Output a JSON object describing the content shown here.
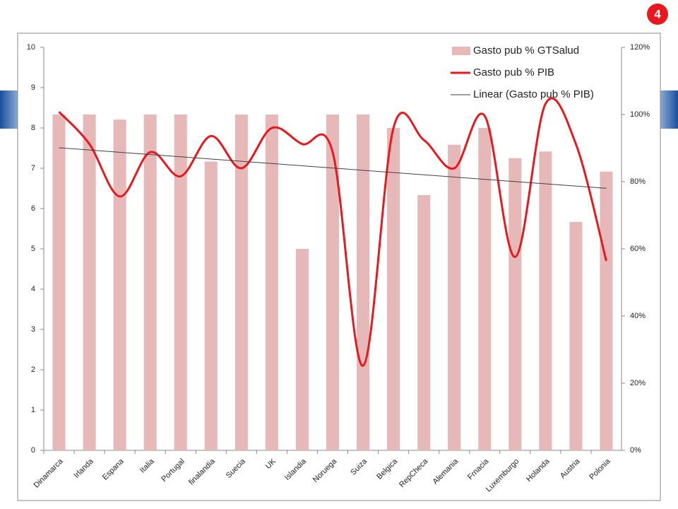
{
  "slide_number": "4",
  "chart_data": {
    "type": "bar-line",
    "categories": [
      "Dinamarca",
      "Irlanda",
      "Espana",
      "Italia",
      "Portugal",
      "finalandia",
      "Suecia",
      "UK",
      "Islandia",
      "Noruega",
      "Suiza",
      "Belgica",
      "RepCheca",
      "Alemania",
      "Frnacia",
      "Luxemburgo",
      "Holanda",
      "Austria",
      "Polonia"
    ],
    "series": [
      {
        "name": "Gasto pub % GTSalud",
        "type": "bar",
        "axis": "y2",
        "color": "#e6b9b8",
        "values": [
          100,
          100,
          98.5,
          100,
          100,
          86,
          100,
          100,
          60,
          100,
          100,
          96,
          76,
          91,
          96,
          87,
          89,
          68,
          83
        ]
      },
      {
        "name": "Gasto pub % PIB",
        "type": "line",
        "color": "#e8191e",
        "values": [
          8.4,
          7.6,
          6.3,
          7.4,
          6.8,
          7.8,
          7.0,
          8.0,
          7.6,
          7.4,
          2.1,
          8.0,
          7.7,
          7.0,
          8.3,
          4.8,
          8.6,
          7.6,
          4.7
        ]
      }
    ],
    "trendline": {
      "name": "Linear (Gasto pub % PIB)",
      "color": "#404040",
      "of_series": 1
    },
    "ylim": [
      0,
      10
    ],
    "yticks": [
      0,
      1,
      2,
      3,
      4,
      5,
      6,
      7,
      8,
      9,
      10
    ],
    "y2lim": [
      0,
      120
    ],
    "y2ticks": [
      {
        "value": 0,
        "label": "0%"
      },
      {
        "value": 20,
        "label": "20%"
      },
      {
        "value": 40,
        "label": "40%"
      },
      {
        "value": 60,
        "label": "60%"
      },
      {
        "value": 80,
        "label": "80%"
      },
      {
        "value": 100,
        "label": "100%"
      },
      {
        "value": 120,
        "label": "120%"
      }
    ],
    "legend": "top-right"
  }
}
